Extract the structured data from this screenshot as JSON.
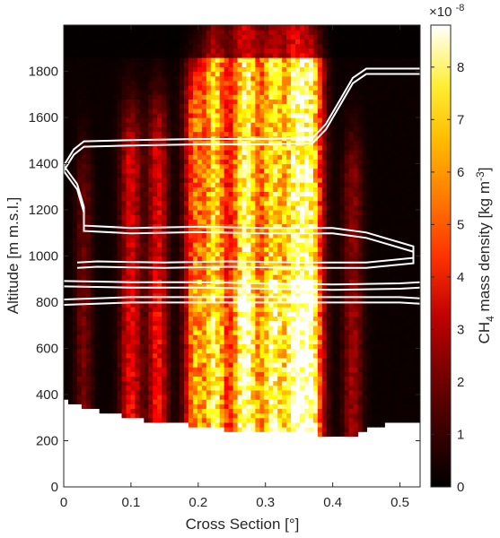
{
  "chart_data": {
    "type": "heatmap",
    "title": "",
    "xlabel": "Cross Section [°]",
    "ylabel": "Altitude [m m.s.l.]",
    "xlim": [
      0,
      0.53
    ],
    "ylim": [
      0,
      2000
    ],
    "x_ticks": [
      0,
      0.1,
      0.2,
      0.3,
      0.4,
      0.5
    ],
    "x_tick_labels": [
      "0",
      "0.1",
      "0.2",
      "0.3",
      "0.4",
      "0.5"
    ],
    "y_ticks": [
      0,
      200,
      400,
      600,
      800,
      1000,
      1200,
      1400,
      1600,
      1800
    ],
    "y_tick_labels": [
      "0",
      "200",
      "400",
      "600",
      "800",
      "1000",
      "1200",
      "1400",
      "1600",
      "1800"
    ],
    "colormap": "hot",
    "colorbar": {
      "label_prefix": "CH",
      "label_sub": "4",
      "label_suffix": " mass density [kg m",
      "label_sup": "-3",
      "label_end": "]",
      "exponent_base": "×10",
      "exponent_power": "-8",
      "range": [
        0,
        8.8
      ],
      "ticks": [
        0,
        1,
        2,
        3,
        4,
        5,
        6,
        7,
        8
      ],
      "tick_labels": [
        "0",
        "1",
        "2",
        "3",
        "4",
        "5",
        "6",
        "7",
        "8"
      ]
    },
    "plumes": [
      {
        "center": 0.03,
        "width": 0.012,
        "amplitude": 1.2
      },
      {
        "center": 0.1,
        "width": 0.015,
        "amplitude": 2.6
      },
      {
        "center": 0.14,
        "width": 0.014,
        "amplitude": 2.8
      },
      {
        "center": 0.195,
        "width": 0.015,
        "amplitude": 4.2
      },
      {
        "center": 0.225,
        "width": 0.018,
        "amplitude": 6.0
      },
      {
        "center": 0.27,
        "width": 0.02,
        "amplitude": 7.2
      },
      {
        "center": 0.31,
        "width": 0.018,
        "amplitude": 6.0
      },
      {
        "center": 0.345,
        "width": 0.02,
        "amplitude": 7.0
      },
      {
        "center": 0.37,
        "width": 0.016,
        "amplitude": 5.5
      },
      {
        "center": 0.43,
        "width": 0.014,
        "amplitude": 1.6
      }
    ],
    "data_floor": [
      [
        0.0,
        380
      ],
      [
        0.01,
        365
      ],
      [
        0.03,
        345
      ],
      [
        0.07,
        320
      ],
      [
        0.1,
        300
      ],
      [
        0.13,
        285
      ],
      [
        0.2,
        265
      ],
      [
        0.24,
        250
      ],
      [
        0.3,
        250
      ],
      [
        0.37,
        245
      ],
      [
        0.38,
        225
      ],
      [
        0.44,
        230
      ],
      [
        0.45,
        255
      ],
      [
        0.48,
        270
      ],
      [
        0.5,
        280
      ],
      [
        0.53,
        285
      ]
    ],
    "contours": [
      {
        "name": "upper-boundary",
        "points": [
          [
            0.0,
            1380
          ],
          [
            0.015,
            1450
          ],
          [
            0.03,
            1485
          ],
          [
            0.1,
            1490
          ],
          [
            0.2,
            1495
          ],
          [
            0.3,
            1495
          ],
          [
            0.37,
            1500
          ],
          [
            0.39,
            1560
          ],
          [
            0.41,
            1660
          ],
          [
            0.43,
            1760
          ],
          [
            0.45,
            1800
          ],
          [
            0.53,
            1800
          ]
        ]
      },
      {
        "name": "upper-layer-loop",
        "points": [
          [
            0.0,
            1380
          ],
          [
            0.02,
            1300
          ],
          [
            0.03,
            1200
          ],
          [
            0.03,
            1120
          ],
          [
            0.1,
            1110
          ],
          [
            0.2,
            1115
          ],
          [
            0.3,
            1110
          ],
          [
            0.4,
            1110
          ],
          [
            0.45,
            1090
          ],
          [
            0.52,
            1030
          ],
          [
            0.52,
            980
          ],
          [
            0.45,
            960
          ],
          [
            0.35,
            960
          ],
          [
            0.25,
            965
          ],
          [
            0.15,
            960
          ],
          [
            0.05,
            965
          ],
          [
            0.02,
            960
          ]
        ]
      },
      {
        "name": "lower-layer-upper",
        "points": [
          [
            0.0,
            880
          ],
          [
            0.1,
            875
          ],
          [
            0.2,
            875
          ],
          [
            0.3,
            870
          ],
          [
            0.4,
            865
          ],
          [
            0.5,
            870
          ],
          [
            0.53,
            875
          ]
        ]
      },
      {
        "name": "lower-layer-lower",
        "points": [
          [
            0.0,
            800
          ],
          [
            0.1,
            810
          ],
          [
            0.2,
            810
          ],
          [
            0.3,
            810
          ],
          [
            0.4,
            810
          ],
          [
            0.5,
            810
          ],
          [
            0.53,
            805
          ]
        ]
      }
    ]
  }
}
